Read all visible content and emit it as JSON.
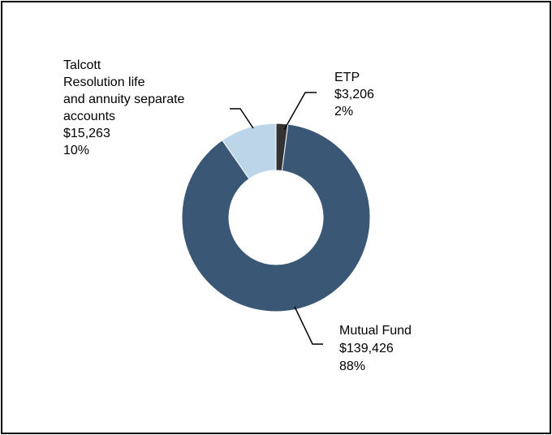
{
  "chart_data": {
    "type": "pie",
    "variant": "donut",
    "title": "",
    "slices": [
      {
        "label": "ETP",
        "amount": "$3,206",
        "percent": "2%",
        "value": 3206,
        "color": "#333333",
        "label_lines": [
          "ETP"
        ]
      },
      {
        "label": "Mutual Fund",
        "amount": "$139,426",
        "percent": "88%",
        "value": 139426,
        "color": "#3a5876",
        "label_lines": [
          "Mutual Fund"
        ]
      },
      {
        "label": "Talcott Resolution life and annuity separate accounts",
        "amount": "$15,263",
        "percent": "10%",
        "value": 15263,
        "color": "#bcd5e9",
        "label_lines": [
          "Talcott",
          "Resolution life",
          "and annuity separate",
          "accounts"
        ]
      }
    ],
    "legend": "none"
  }
}
